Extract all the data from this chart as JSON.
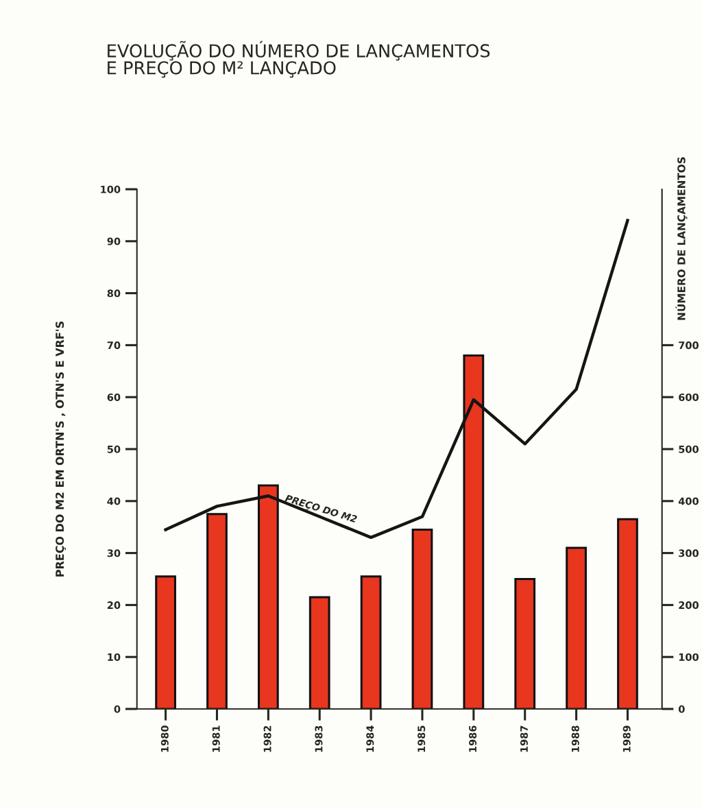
{
  "chart_data": {
    "type": "bar",
    "title": "EVOLUÇÃO DO NÚMERO DE LANÇAMENTOS\nE PREÇO DO M² LANÇADO",
    "ylabel": "PREÇO DO M2 EM ORTN'S , OTN'S E VRF'S",
    "y2label": "NÚMERO DE LANÇAMENTOS",
    "categories": [
      "1980",
      "1981",
      "1982",
      "1983",
      "1984",
      "1985",
      "1986",
      "1987",
      "1988",
      "1989"
    ],
    "series": [
      {
        "axis": "y2",
        "color": "#e8361f",
        "values": [
          255,
          375,
          430,
          215,
          255,
          345,
          680,
          250,
          310,
          365
        ]
      },
      {
        "type": "line",
        "color": "#151512",
        "values": [
          34.5,
          39,
          41,
          37,
          33,
          37,
          59.5,
          51,
          61.5,
          94
        ]
      }
    ],
    "ylim": [
      0,
      100
    ],
    "yticks": [
      0,
      10,
      20,
      30,
      40,
      50,
      60,
      70,
      80,
      90,
      100
    ],
    "y2lim": [
      0,
      1000
    ],
    "y2ticks": [
      0,
      100,
      200,
      300,
      400,
      500,
      600,
      700
    ],
    "annotations": [
      {
        "text": "PREÇO DO M2",
        "x": "1983",
        "y": 37
      }
    ],
    "grid": false,
    "marker": "none",
    "line_style": "solid"
  }
}
